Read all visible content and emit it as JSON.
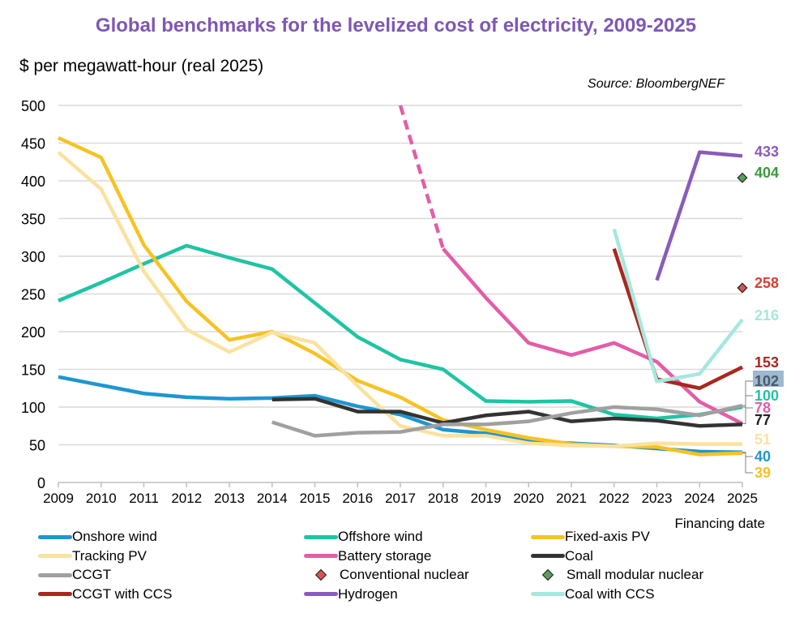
{
  "chart_data": {
    "type": "line",
    "title": "Global benchmarks for the levelized cost of electricity, 2009-2025",
    "ylabel": "$ per megawatt-hour (real 2025)",
    "xlabel": "Financing date",
    "source": "Source: BloombergNEF",
    "ylim": [
      0,
      500
    ],
    "yticks": [
      0,
      50,
      100,
      150,
      200,
      250,
      300,
      350,
      400,
      450,
      500
    ],
    "x": [
      2009,
      2010,
      2011,
      2012,
      2013,
      2014,
      2015,
      2016,
      2017,
      2018,
      2019,
      2020,
      2021,
      2022,
      2023,
      2024,
      2025
    ],
    "grid": true,
    "legend_position": "bottom",
    "series": [
      {
        "name": "Onshore wind",
        "color": "#1e96d0",
        "values": [
          140,
          129,
          118,
          113,
          111,
          112,
          115,
          101,
          90,
          70,
          65,
          55,
          52,
          49,
          45,
          41,
          40
        ],
        "end_label": "40",
        "label_color": "#1e96d0"
      },
      {
        "name": "Offshore wind",
        "color": "#1fc4a3",
        "values": [
          241,
          265,
          290,
          314,
          298,
          283,
          238,
          193,
          163,
          150,
          108,
          107,
          108,
          90,
          85,
          90,
          100
        ],
        "end_label": "100",
        "label_color": "#1fc4a3"
      },
      {
        "name": "Fixed-axis PV",
        "color": "#f5c323",
        "values": [
          457,
          431,
          315,
          240,
          189,
          200,
          171,
          135,
          113,
          83,
          70,
          59,
          51,
          48,
          47,
          37,
          39
        ],
        "end_label": "39",
        "label_color": "#f5c323"
      },
      {
        "name": "Tracking PV",
        "color": "#fae29e",
        "values": [
          438,
          389,
          280,
          203,
          173,
          199,
          185,
          128,
          75,
          62,
          62,
          52,
          49,
          48,
          52,
          51,
          51
        ],
        "end_label": "51",
        "label_color": "#fae29e"
      },
      {
        "name": "Battery storage",
        "color": "#e35da8",
        "values": [
          null,
          null,
          null,
          null,
          null,
          null,
          null,
          null,
          500,
          310,
          245,
          185,
          169,
          185,
          160,
          107,
          78
        ],
        "dashed_until": 2018,
        "end_label": "78",
        "label_color": "#e35da8"
      },
      {
        "name": "Coal",
        "color": "#333333",
        "values": [
          null,
          null,
          null,
          null,
          null,
          110,
          111,
          94,
          94,
          79,
          89,
          94,
          81,
          85,
          82,
          75,
          77
        ],
        "end_label": "77",
        "label_color": "#222222"
      },
      {
        "name": "CCGT",
        "color": "#a0a0a0",
        "values": [
          null,
          null,
          null,
          null,
          null,
          80,
          62,
          66,
          67,
          77,
          77,
          81,
          92,
          100,
          97,
          89,
          102
        ],
        "end_label": "102",
        "label_color": "#4a5a6a",
        "label_bg": "#9db9cf"
      },
      {
        "name": "Conventional nuclear",
        "color": "#d9534f",
        "marker": "diamond",
        "values": [
          null,
          null,
          null,
          null,
          null,
          null,
          null,
          null,
          null,
          null,
          null,
          null,
          null,
          null,
          null,
          null,
          258
        ],
        "end_label": "258",
        "label_color": "#d9402e"
      },
      {
        "name": "Small modular nuclear",
        "color": "#5a9e5a",
        "marker": "diamond",
        "values": [
          null,
          null,
          null,
          null,
          null,
          null,
          null,
          null,
          null,
          null,
          null,
          null,
          null,
          null,
          null,
          null,
          404
        ],
        "end_label": "404",
        "label_color": "#3a9a3a"
      },
      {
        "name": "CCGT with CCS",
        "color": "#a8281e",
        "values": [
          null,
          null,
          null,
          null,
          null,
          null,
          null,
          null,
          null,
          null,
          null,
          null,
          null,
          310,
          137,
          125,
          153
        ],
        "end_label": "153",
        "label_color": "#a8281e"
      },
      {
        "name": "Hydrogen",
        "color": "#8a5bb8",
        "values": [
          null,
          null,
          null,
          null,
          null,
          null,
          null,
          null,
          null,
          null,
          null,
          null,
          null,
          null,
          268,
          438,
          433
        ],
        "end_label": "433",
        "label_color": "#8a5bb8"
      },
      {
        "name": "Coal with CCS",
        "color": "#a5e8dd",
        "values": [
          null,
          null,
          null,
          null,
          null,
          null,
          null,
          null,
          null,
          null,
          null,
          null,
          null,
          336,
          134,
          144,
          216
        ],
        "end_label": "216",
        "label_color": "#a5e8dd"
      }
    ]
  }
}
